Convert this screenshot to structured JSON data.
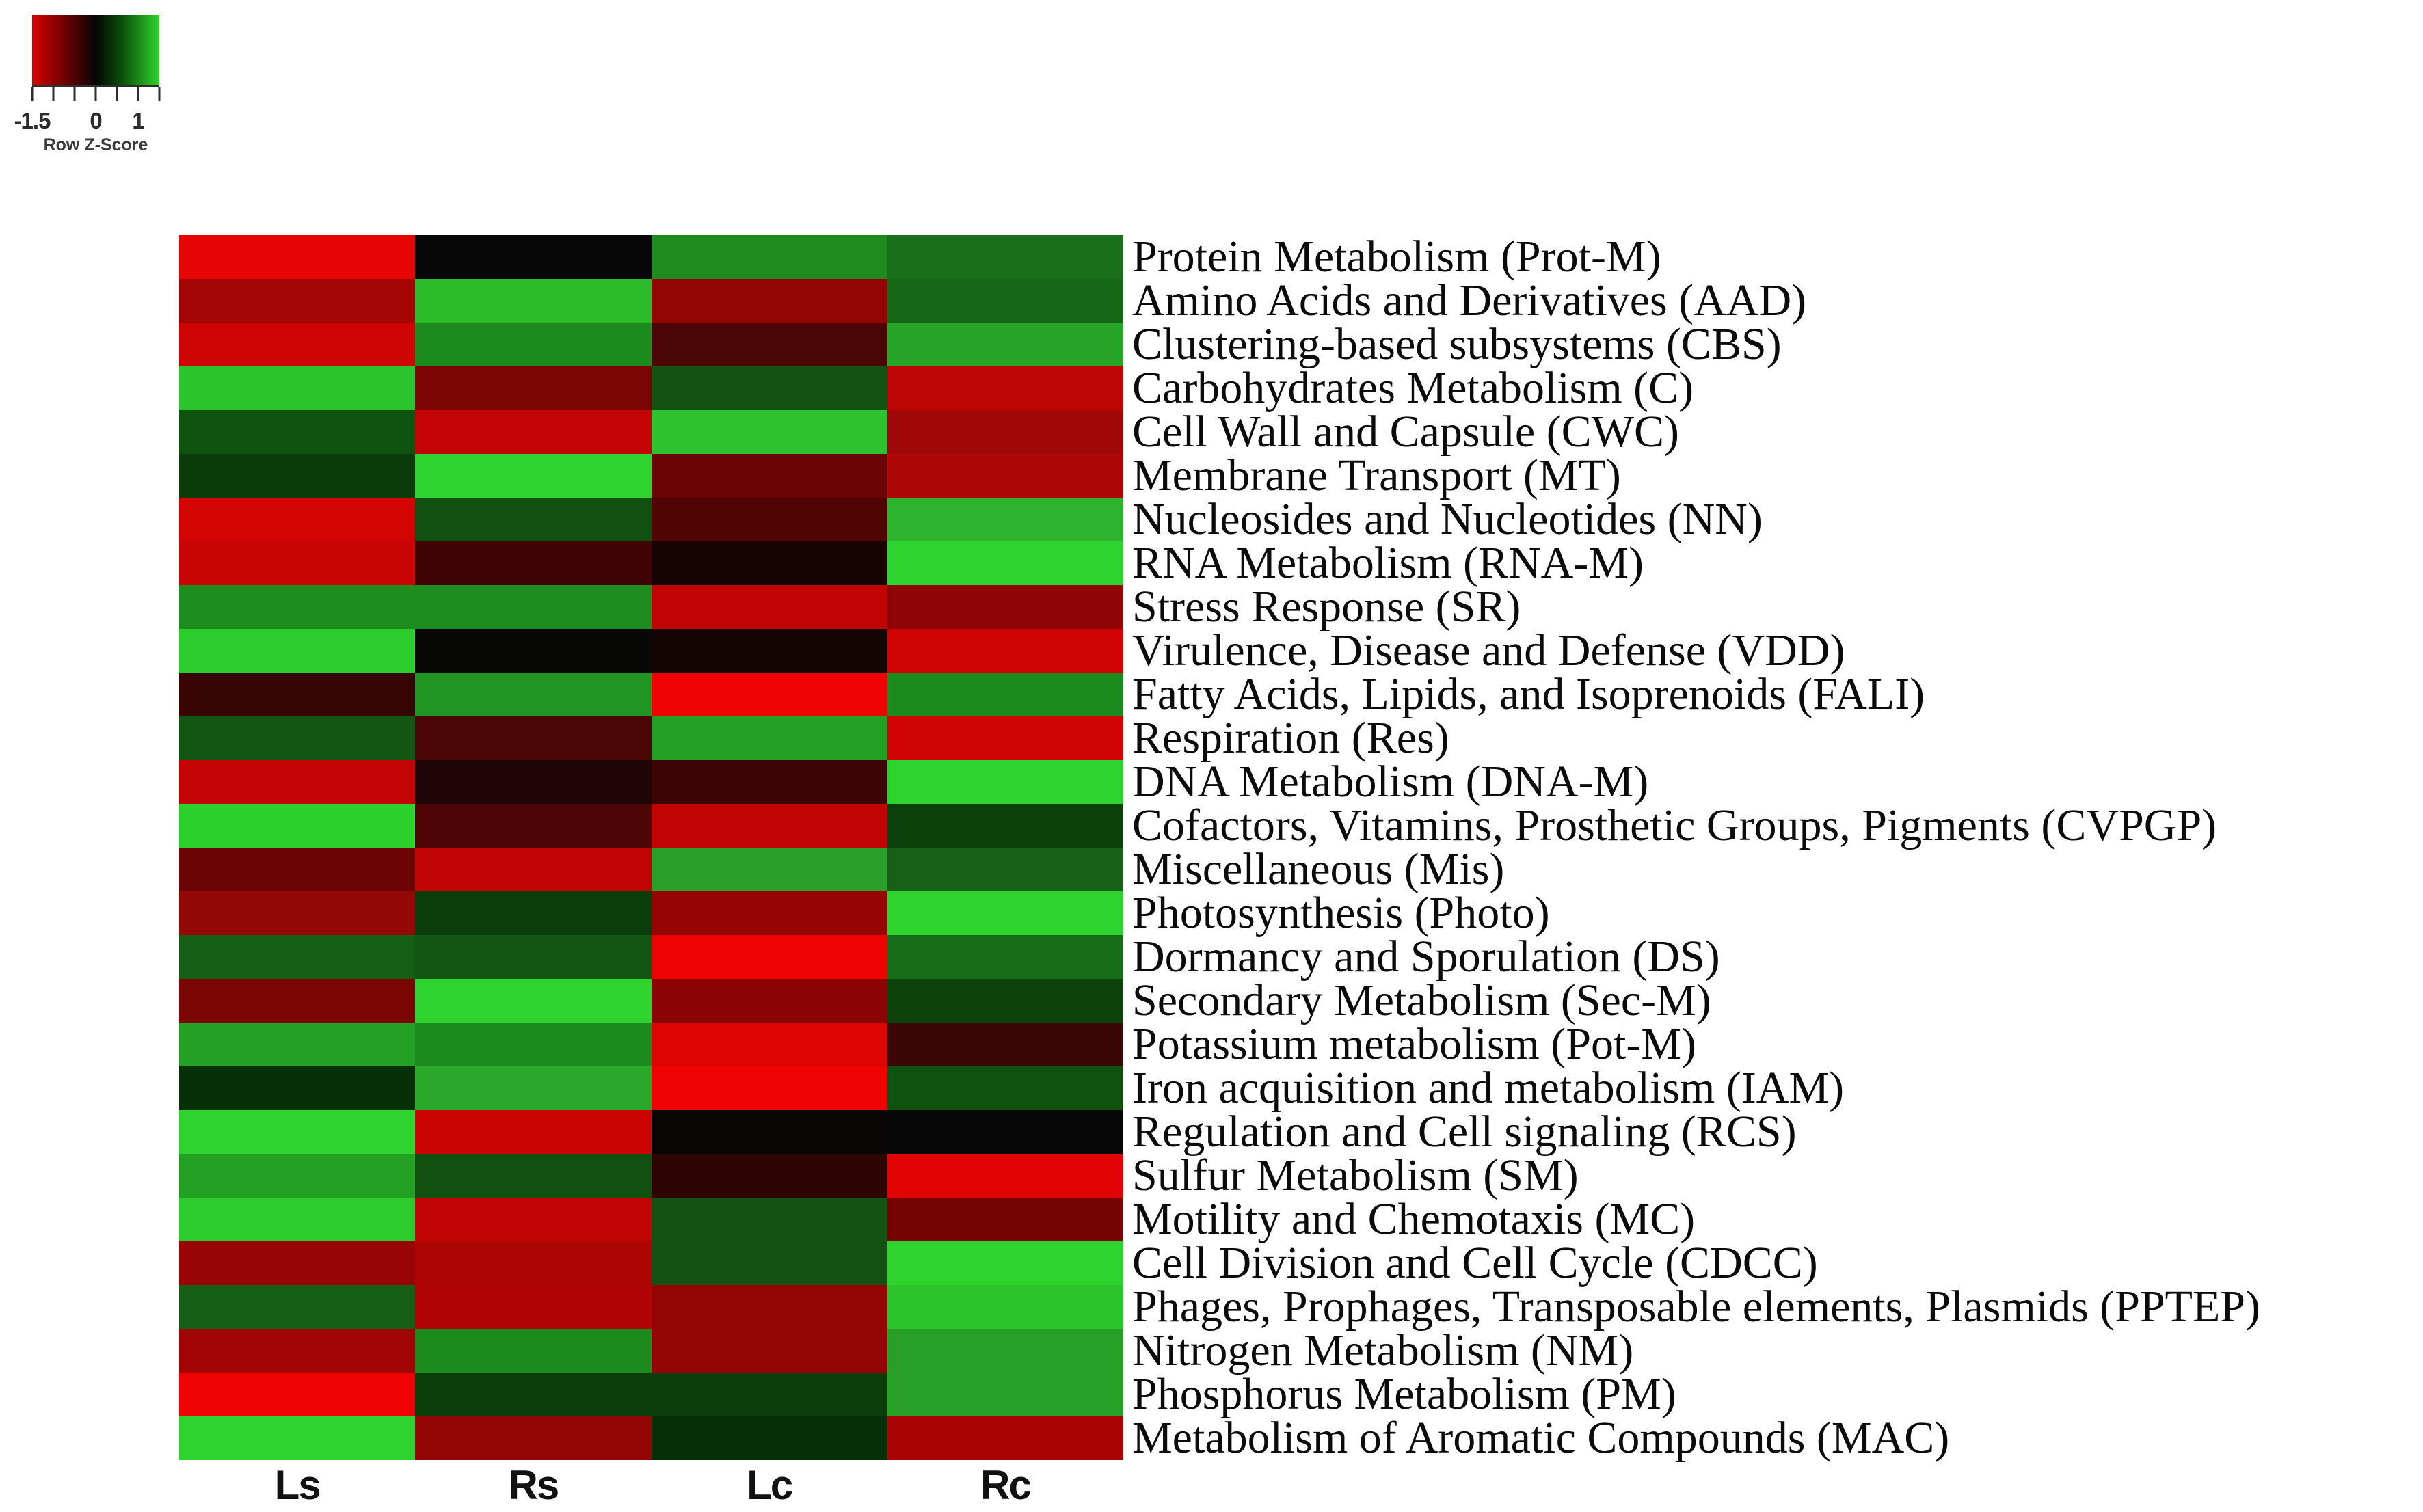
{
  "legend": {
    "caption": "Row Z-Score",
    "axis_min": -1.5,
    "axis_max": 1.5,
    "tick_values": [
      -1.5,
      -1,
      -0.5,
      0,
      0.5,
      1,
      1.5
    ],
    "labeled_ticks": [
      {
        "value": -1.5,
        "label": "-1.5"
      },
      {
        "value": 0,
        "label": "0"
      },
      {
        "value": 1,
        "label": "1"
      }
    ],
    "gradient_stops": [
      "#d80000",
      "#5c0202",
      "#060606",
      "#0a4d0a",
      "#2ed32e"
    ]
  },
  "chart_data": {
    "type": "heatmap",
    "title": "",
    "legend_title": "Row Z-Score",
    "colorscale": {
      "min": -1.5,
      "mid": 0,
      "max": 1.5,
      "min_color": "#ee0202",
      "mid_color": "#060606",
      "max_color": "#2ed32e"
    },
    "columns": [
      "Ls",
      "Rs",
      "Lc",
      "Rc"
    ],
    "rows": [
      {
        "label": "Protein Metabolism (Prot-M)",
        "values": [
          -1.45,
          0.0,
          0.7,
          0.6
        ],
        "colors": [
          "#e60505",
          "#060606",
          "#1f8a1f",
          "#1a701a"
        ]
      },
      {
        "label": "Amino Acids and Derivatives (AAD)",
        "values": [
          -1.0,
          1.0,
          -0.9,
          0.5
        ],
        "colors": [
          "#a30505",
          "#2bbb2b",
          "#950404",
          "#156615"
        ]
      },
      {
        "label": "Clustering-based subsystems (CBS)",
        "values": [
          -1.2,
          0.7,
          -0.45,
          0.85
        ],
        "colors": [
          "#cf0404",
          "#1d8a1d",
          "#4a0505",
          "#28a428"
        ]
      },
      {
        "label": "Carbohydrates Metabolism (C)",
        "values": [
          1.1,
          -0.75,
          0.45,
          -1.1
        ],
        "colors": [
          "#2cc42c",
          "#7a0505",
          "#145214",
          "#bb0404"
        ]
      },
      {
        "label": "Cell Wall and Capsule (CWC)",
        "values": [
          0.45,
          -1.2,
          1.1,
          -1.0
        ],
        "colors": [
          "#0e530e",
          "#c40404",
          "#2fc42f",
          "#a00707"
        ]
      },
      {
        "label": "Membrane Transport (MT)",
        "values": [
          0.3,
          1.25,
          -0.65,
          -1.0
        ],
        "colors": [
          "#0b3b0b",
          "#2fd32f",
          "#6b0404",
          "#ad0707"
        ]
      },
      {
        "label": "Nucleosides and Nucleotides (NN)",
        "values": [
          -1.3,
          0.45,
          -0.5,
          0.95
        ],
        "colors": [
          "#d40404",
          "#125012",
          "#500404",
          "#2db32d"
        ]
      },
      {
        "label": "RNA Metabolism (RNA-M)",
        "values": [
          -1.2,
          -0.45,
          -0.1,
          1.25
        ],
        "colors": [
          "#c80404",
          "#400404",
          "#190404",
          "#2ed32e"
        ]
      },
      {
        "label": "Stress Response (SR)",
        "values": [
          0.7,
          0.7,
          -1.15,
          -0.9
        ],
        "colors": [
          "#1f8c1f",
          "#1f8c1f",
          "#c00404",
          "#8f0505"
        ]
      },
      {
        "label": "Virulence, Disease and Defense (VDD)",
        "values": [
          1.1,
          0.0,
          -0.1,
          -1.25
        ],
        "colors": [
          "#2bcc2b",
          "#080806",
          "#140505",
          "#d00404"
        ]
      },
      {
        "label": "Fatty Acids, Lipids, and Isoprenoids (FALI)",
        "values": [
          -0.35,
          0.85,
          -1.5,
          0.7
        ],
        "colors": [
          "#380505",
          "#219421",
          "#ee0202",
          "#1d8a1d"
        ]
      },
      {
        "label": "Respiration (Res)",
        "values": [
          0.45,
          -0.45,
          0.85,
          -1.25
        ],
        "colors": [
          "#135613",
          "#4a0505",
          "#22a022",
          "#d00404"
        ]
      },
      {
        "label": "DNA Metabolism (DNA-M)",
        "values": [
          -1.15,
          -0.15,
          -0.4,
          1.25
        ],
        "colors": [
          "#c40404",
          "#1f0505",
          "#3d0505",
          "#2ed32e"
        ]
      },
      {
        "label": "Cofactors, Vitamins, Prosthetic Groups, Pigments (CVPGP)",
        "values": [
          1.2,
          -0.45,
          -1.15,
          0.3
        ],
        "colors": [
          "#2bd22b",
          "#4d0505",
          "#c00404",
          "#0b400b"
        ]
      },
      {
        "label": "Miscellaneous (Mis)",
        "values": [
          -0.65,
          -1.15,
          0.85,
          0.55
        ],
        "colors": [
          "#6b0505",
          "#c00404",
          "#2aa02a",
          "#176017"
        ]
      },
      {
        "label": "Photosynthesis (Photo)",
        "values": [
          -0.9,
          0.3,
          -0.9,
          1.25
        ],
        "colors": [
          "#940808",
          "#0a3d0a",
          "#980404",
          "#2ed32e"
        ]
      },
      {
        "label": "Dormancy and Sporulation (DS)",
        "values": [
          0.5,
          0.45,
          -1.5,
          0.6
        ],
        "colors": [
          "#166016",
          "#135613",
          "#ee0202",
          "#186e18"
        ]
      },
      {
        "label": "Secondary Metabolism (Sec-M)",
        "values": [
          -0.75,
          1.25,
          -0.85,
          0.35
        ],
        "colors": [
          "#7a0505",
          "#2ed32e",
          "#8b0404",
          "#0c420c"
        ]
      },
      {
        "label": "Potassium metabolism (Pot-M)",
        "values": [
          0.85,
          0.7,
          -1.35,
          -0.45
        ],
        "colors": [
          "#24a024",
          "#1d8a1d",
          "#dd0404",
          "#3a0606"
        ]
      },
      {
        "label": "Iron acquisition and metabolism (IAM)",
        "values": [
          0.25,
          0.85,
          -1.5,
          0.45
        ],
        "colors": [
          "#083008",
          "#2aa82a",
          "#ee0202",
          "#0f520f"
        ]
      },
      {
        "label": "Regulation and Cell signaling (RCS)",
        "values": [
          1.25,
          -1.2,
          -0.05,
          0.0
        ],
        "colors": [
          "#2ed32e",
          "#cc0404",
          "#0a0505",
          "#070707"
        ]
      },
      {
        "label": "Sulfur Metabolism (SM)",
        "values": [
          0.85,
          0.45,
          -0.3,
          -1.4
        ],
        "colors": [
          "#22a022",
          "#125012",
          "#2e0505",
          "#e00404"
        ]
      },
      {
        "label": "Motility and Chemotaxis (MC)",
        "values": [
          1.1,
          -1.15,
          0.45,
          -0.75
        ],
        "colors": [
          "#2ccc2c",
          "#c00404",
          "#145214",
          "#750404"
        ]
      },
      {
        "label": "Cell Division and Cell Cycle (CDCC)",
        "values": [
          -0.95,
          -1.0,
          0.45,
          1.25
        ],
        "colors": [
          "#990404",
          "#ad0404",
          "#145214",
          "#2ed32e"
        ]
      },
      {
        "label": "Phages, Prophages, Transposable elements, Plasmids (PPTEP)",
        "values": [
          0.5,
          -1.0,
          -0.9,
          1.1
        ],
        "colors": [
          "#156015",
          "#b00404",
          "#940404",
          "#2bc42b"
        ]
      },
      {
        "label": "Nitrogen Metabolism (NM)",
        "values": [
          -1.0,
          0.7,
          -0.9,
          0.85
        ],
        "colors": [
          "#a00404",
          "#1d8a1d",
          "#940404",
          "#28a028"
        ]
      },
      {
        "label": "Phosphorus Metabolism (PM)",
        "values": [
          -1.5,
          0.3,
          0.3,
          0.85
        ],
        "colors": [
          "#ee0202",
          "#0a3d0a",
          "#0a3d0a",
          "#28a028"
        ]
      },
      {
        "label": "Metabolism of Aromatic Compounds (MAC)",
        "values": [
          1.25,
          -0.75,
          0.25,
          -1.0
        ],
        "colors": [
          "#2ed32e",
          "#940505",
          "#083008",
          "#a80404"
        ]
      }
    ]
  }
}
